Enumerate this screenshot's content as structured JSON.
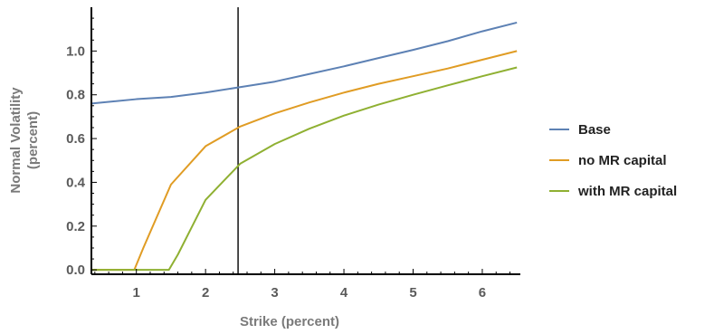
{
  "chart_data": {
    "type": "line",
    "xlabel": "Strike (percent)",
    "ylabel_lines": [
      "Normal Volatility",
      "(percent)"
    ],
    "xlim": [
      0.35,
      6.55
    ],
    "ylim": [
      -0.02,
      1.2
    ],
    "xticks": [
      1,
      2,
      3,
      4,
      5,
      6
    ],
    "yticks": [
      0.0,
      0.2,
      0.4,
      0.6,
      0.8,
      1.0
    ],
    "ytick_labels": [
      "0.0",
      "0.2",
      "0.4",
      "0.6",
      "0.8",
      "1.0"
    ],
    "vertical_line_x": 2.47,
    "grid": false,
    "legend_position": "right",
    "series": [
      {
        "name": "Base",
        "color": "#5d81b4",
        "x": [
          0.35,
          1.0,
          1.5,
          2.0,
          2.5,
          3.0,
          3.5,
          4.0,
          4.5,
          5.0,
          5.5,
          6.0,
          6.5
        ],
        "y": [
          0.76,
          0.78,
          0.79,
          0.81,
          0.835,
          0.86,
          0.895,
          0.93,
          0.968,
          1.005,
          1.045,
          1.09,
          1.13
        ]
      },
      {
        "name": "no MR capital",
        "color": "#e09c24",
        "x": [
          0.35,
          0.97,
          1.1,
          1.5,
          2.0,
          2.5,
          3.0,
          3.5,
          4.0,
          4.5,
          5.0,
          5.5,
          6.0,
          6.5
        ],
        "y": [
          0.0,
          0.0,
          0.1,
          0.39,
          0.565,
          0.655,
          0.715,
          0.765,
          0.81,
          0.85,
          0.885,
          0.92,
          0.96,
          1.0
        ]
      },
      {
        "name": "with MR capital",
        "color": "#8fb032",
        "x": [
          0.35,
          1.0,
          1.47,
          1.6,
          2.0,
          2.5,
          3.0,
          3.5,
          4.0,
          4.5,
          5.0,
          5.5,
          6.0,
          6.5
        ],
        "y": [
          0.0,
          0.0,
          0.0,
          0.07,
          0.32,
          0.485,
          0.575,
          0.645,
          0.705,
          0.755,
          0.8,
          0.843,
          0.885,
          0.925
        ]
      }
    ]
  }
}
